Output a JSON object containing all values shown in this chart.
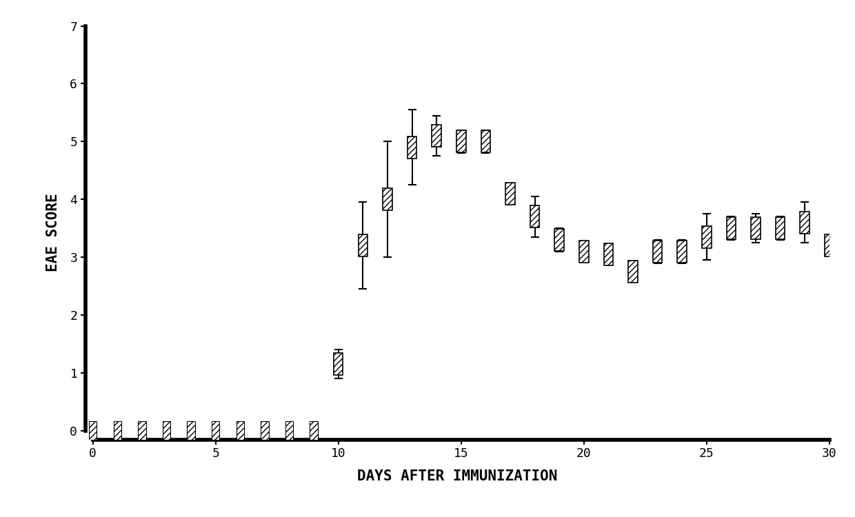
{
  "title": "",
  "xlabel": "DAYS AFTER IMMUNIZATION",
  "ylabel": "EAE SCORE",
  "xlim": [
    -0.3,
    30
  ],
  "ylim": [
    -0.15,
    7
  ],
  "xticks": [
    0,
    5,
    10,
    15,
    20,
    25,
    30
  ],
  "yticks": [
    0,
    1,
    2,
    3,
    4,
    5,
    6,
    7
  ],
  "xlabel_fontsize": 15,
  "ylabel_fontsize": 15,
  "tick_fontsize": 13,
  "days": [
    0,
    1,
    2,
    3,
    4,
    5,
    6,
    7,
    8,
    9,
    10,
    11,
    12,
    13,
    14,
    15,
    16,
    17,
    18,
    19,
    20,
    21,
    22,
    23,
    24,
    25,
    26,
    27,
    28,
    29,
    30
  ],
  "scores": [
    0,
    0,
    0,
    0,
    0,
    0,
    0,
    0,
    0,
    0,
    1.15,
    3.2,
    4.0,
    4.9,
    5.1,
    5.0,
    5.0,
    4.1,
    3.7,
    3.3,
    3.1,
    3.05,
    2.75,
    3.1,
    3.1,
    3.35,
    3.5,
    3.5,
    3.5,
    3.6,
    3.2
  ],
  "errors": [
    0,
    0,
    0,
    0,
    0,
    0,
    0,
    0,
    0,
    0,
    0.25,
    0.75,
    1.0,
    0.65,
    0.35,
    0.2,
    0.2,
    0.0,
    0.35,
    0.2,
    0.15,
    0.1,
    0.15,
    0.2,
    0.2,
    0.4,
    0.2,
    0.25,
    0.2,
    0.35,
    0.15
  ],
  "marker_size": 0.38,
  "zero_marker_size": 0.32,
  "marker_hatch": "////",
  "background_color": "#ffffff",
  "spine_linewidth": 4.0
}
